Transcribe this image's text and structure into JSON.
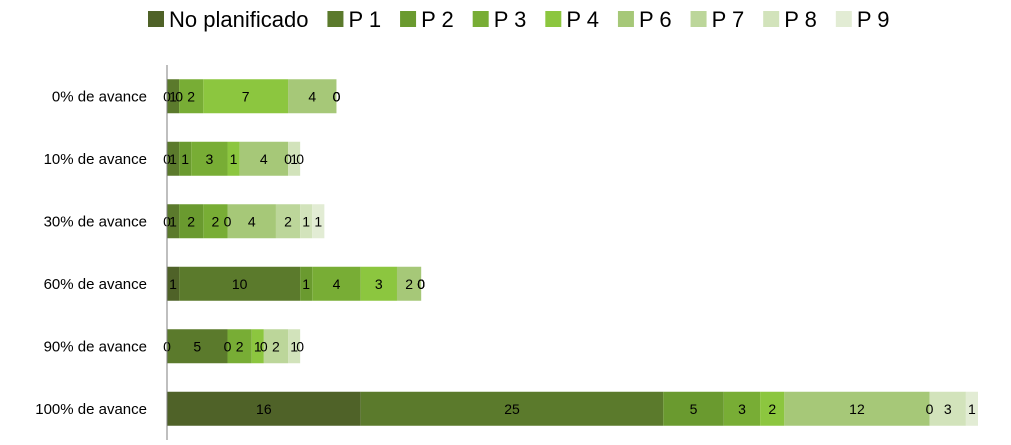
{
  "chart_data": {
    "type": "bar",
    "orientation": "horizontal",
    "stacked": true,
    "legend_position": "top",
    "grid": false,
    "categories": [
      "0% de avance",
      "10% de avance",
      "30% de avance",
      "60% de avance",
      "90% de avance",
      "100% de avance"
    ],
    "series": [
      {
        "name": "No planificado",
        "color": "#4f6228",
        "values": [
          0,
          0,
          0,
          1,
          0,
          16
        ]
      },
      {
        "name": "P 1",
        "color": "#5b7a2c",
        "values": [
          1,
          1,
          1,
          10,
          5,
          25
        ]
      },
      {
        "name": "P 2",
        "color": "#6a9a2f",
        "values": [
          0,
          1,
          2,
          1,
          0,
          5
        ]
      },
      {
        "name": "P 3",
        "color": "#78ad35",
        "values": [
          2,
          3,
          2,
          4,
          2,
          3
        ]
      },
      {
        "name": "P 4",
        "color": "#8cc63f",
        "values": [
          7,
          1,
          0,
          3,
          1,
          2
        ]
      },
      {
        "name": "P 6",
        "color": "#a6c878",
        "values": [
          4,
          4,
          4,
          2,
          0,
          12
        ]
      },
      {
        "name": "P 7",
        "color": "#bcd69a",
        "values": [
          0,
          0,
          2,
          0,
          2,
          0
        ]
      },
      {
        "name": "P 8",
        "color": "#d2e3bb",
        "values": [
          0,
          1,
          1,
          0,
          1,
          3
        ]
      },
      {
        "name": "P 9",
        "color": "#e2ecd4",
        "values": [
          0,
          0,
          1,
          0,
          0,
          1
        ]
      }
    ],
    "xlim": [
      0,
      67
    ]
  }
}
